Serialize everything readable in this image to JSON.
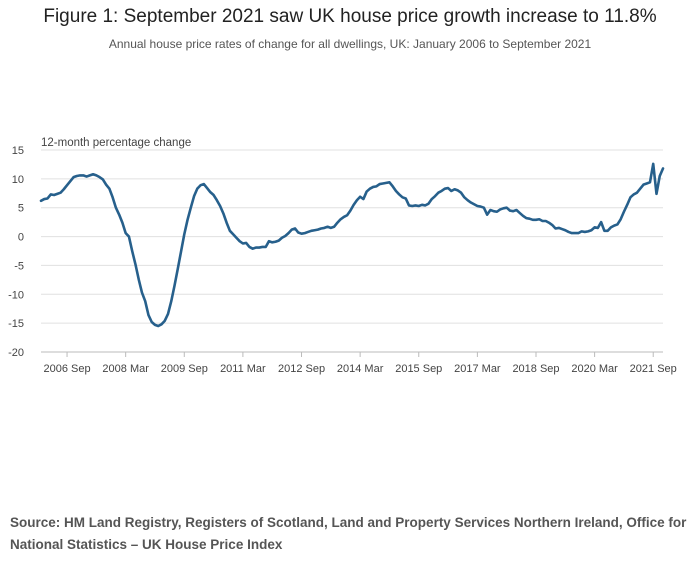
{
  "title": "Figure 1: September 2021 saw UK house price growth increase to 11.8%",
  "subtitle": "Annual house price rates of change for all dwellings, UK: January 2006 to September 2021",
  "source": "Source: HM Land Registry, Registers of Scotland, Land and Property Services Northern Ireland, Office for National Statistics – UK House Price Index",
  "colors": {
    "line": "#27608c",
    "grid": "#e0e0e0",
    "axis": "#bbbbbb"
  },
  "chart_data": {
    "type": "line",
    "title": "Figure 1: September 2021 saw UK house price growth increase to 11.8%",
    "ylabel": "12-month percentage change",
    "xlabel": "",
    "ylim": [
      -20,
      15
    ],
    "yticks": [
      15,
      10,
      5,
      0,
      -5,
      -10,
      -15,
      -20
    ],
    "x_range": [
      "2006 Jan",
      "2021 Sep"
    ],
    "x_ticks": [
      {
        "label": "2006 Sep",
        "index": 8
      },
      {
        "label": "2008 Mar",
        "index": 26
      },
      {
        "label": "2009 Sep",
        "index": 44
      },
      {
        "label": "2011 Mar",
        "index": 62
      },
      {
        "label": "2012 Sep",
        "index": 80
      },
      {
        "label": "2014 Mar",
        "index": 98
      },
      {
        "label": "2015 Sep",
        "index": 116
      },
      {
        "label": "2017 Mar",
        "index": 134
      },
      {
        "label": "2018 Sep",
        "index": 152
      },
      {
        "label": "2020 Mar",
        "index": 170
      },
      {
        "label": "2021 Sep",
        "index": 188
      }
    ],
    "series": [
      {
        "name": "Annual house price rate of change, UK",
        "values": [
          6.2,
          6.5,
          6.6,
          7.3,
          7.2,
          7.4,
          7.6,
          8.2,
          8.9,
          9.6,
          10.3,
          10.5,
          10.6,
          10.6,
          10.4,
          10.6,
          10.8,
          10.6,
          10.3,
          9.9,
          9.0,
          8.3,
          6.8,
          5.0,
          3.8,
          2.4,
          0.6,
          0.0,
          -2.5,
          -4.8,
          -7.4,
          -9.7,
          -11.2,
          -13.6,
          -14.8,
          -15.3,
          -15.5,
          -15.2,
          -14.6,
          -13.4,
          -11.2,
          -8.5,
          -5.6,
          -2.6,
          0.4,
          2.9,
          5.0,
          7.0,
          8.3,
          8.9,
          9.1,
          8.4,
          7.7,
          7.2,
          6.3,
          5.3,
          4.0,
          2.4,
          1.0,
          0.4,
          -0.2,
          -0.8,
          -1.2,
          -1.1,
          -1.8,
          -2.1,
          -1.9,
          -1.9,
          -1.8,
          -1.8,
          -0.8,
          -1.0,
          -0.9,
          -0.7,
          -0.2,
          0.1,
          0.6,
          1.2,
          1.4,
          0.7,
          0.5,
          0.6,
          0.8,
          1.0,
          1.1,
          1.2,
          1.4,
          1.5,
          1.7,
          1.5,
          1.7,
          2.4,
          3.0,
          3.4,
          3.7,
          4.5,
          5.5,
          6.3,
          6.9,
          6.5,
          7.8,
          8.3,
          8.6,
          8.7,
          9.1,
          9.2,
          9.3,
          9.4,
          8.7,
          7.9,
          7.3,
          6.8,
          6.6,
          5.4,
          5.3,
          5.4,
          5.3,
          5.5,
          5.4,
          5.7,
          6.5,
          7.0,
          7.6,
          7.9,
          8.3,
          8.4,
          7.9,
          8.2,
          8.0,
          7.6,
          6.8,
          6.3,
          5.9,
          5.6,
          5.3,
          5.2,
          5.0,
          3.8,
          4.6,
          4.4,
          4.3,
          4.7,
          4.9,
          5.0,
          4.5,
          4.4,
          4.6,
          4.1,
          3.6,
          3.2,
          3.1,
          2.9,
          2.9,
          3.0,
          2.7,
          2.7,
          2.4,
          2.0,
          1.4,
          1.5,
          1.3,
          1.1,
          0.8,
          0.6,
          0.6,
          0.6,
          0.9,
          0.8,
          0.9,
          1.1,
          1.6,
          1.5,
          2.5,
          1.0,
          1.0,
          1.6,
          1.9,
          2.1,
          3.0,
          4.3,
          5.5,
          6.8,
          7.3,
          7.6,
          8.3,
          9.0,
          9.2,
          9.4,
          12.6,
          7.4,
          10.5,
          11.8
        ]
      }
    ]
  }
}
